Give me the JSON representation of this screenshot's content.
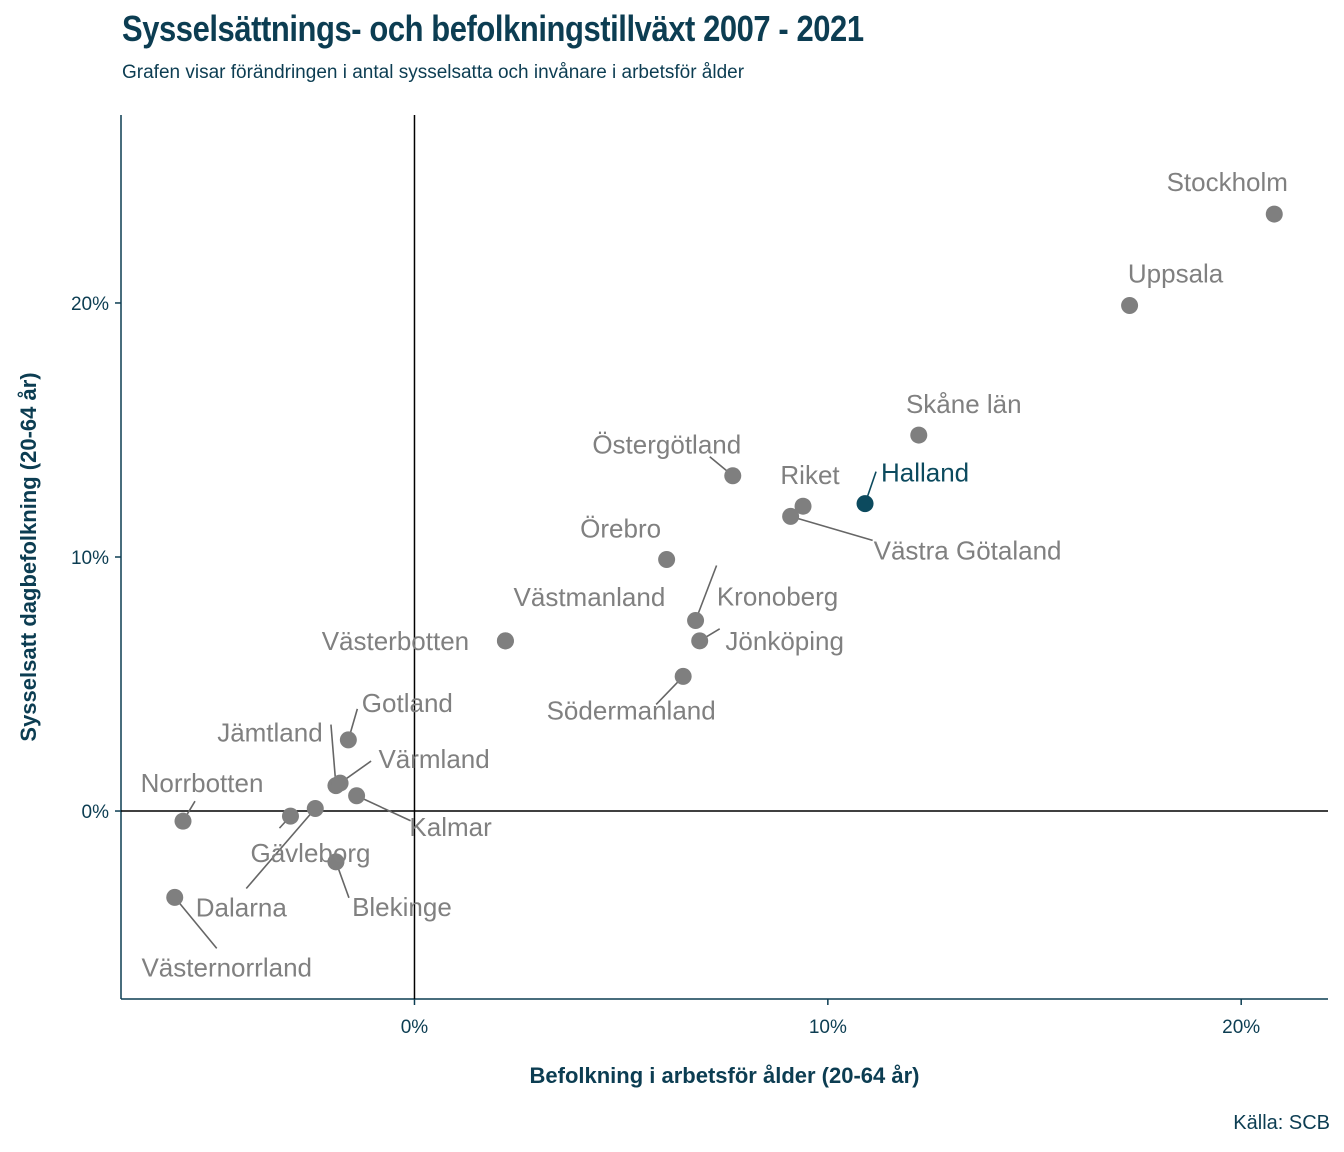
{
  "title": "Sysselsättnings- och befolkningstillväxt 2007 - 2021",
  "subtitle": "Grafen visar förändringen i antal sysselsatta och invånare i arbetsför ålder",
  "caption": "Källa: SCB",
  "colors": {
    "point": "#7f7f7f",
    "highlight": "#0c4a5e",
    "text": "#0c3d52",
    "label": "#808080"
  },
  "chart_data": {
    "type": "scatter",
    "title": "Sysselsättnings- och befolkningstillväxt 2007 - 2021",
    "subtitle": "Grafen visar förändringen i antal sysselsatta och invånare i arbetsför ålder",
    "xlabel": "Befolkning i arbetsför ålder (20-64 år)",
    "ylabel": "Sysselsatt dagbefolkning (20-64 år)",
    "xlim": [
      -7.1,
      22.1
    ],
    "ylim": [
      -7.4,
      27.4
    ],
    "x_ticks": [
      0,
      10,
      20
    ],
    "y_ticks": [
      0,
      10,
      20
    ],
    "x_tick_labels": [
      "0%",
      "10%",
      "20%"
    ],
    "y_tick_labels": [
      "0%",
      "10%",
      "20%"
    ],
    "grid": false,
    "highlight": "Halland",
    "points": [
      {
        "name": "Stockholm",
        "x": 20.8,
        "y": 23.5
      },
      {
        "name": "Uppsala",
        "x": 17.3,
        "y": 19.9
      },
      {
        "name": "Skåne län",
        "x": 12.2,
        "y": 14.8
      },
      {
        "name": "Östergötland",
        "x": 7.7,
        "y": 13.2
      },
      {
        "name": "Riket",
        "x": 9.4,
        "y": 12.0
      },
      {
        "name": "Halland",
        "x": 10.9,
        "y": 12.1
      },
      {
        "name": "Västra Götaland",
        "x": 9.1,
        "y": 11.6
      },
      {
        "name": "Örebro",
        "x": 6.1,
        "y": 9.9
      },
      {
        "name": "Västmanland",
        "x": 2.2,
        "y": 6.7
      },
      {
        "name": "Västerbotten",
        "x": 2.2,
        "y": 6.7
      },
      {
        "name": "Kronoberg",
        "x": 6.8,
        "y": 7.5
      },
      {
        "name": "Jönköping",
        "x": 6.9,
        "y": 6.7
      },
      {
        "name": "Södermanland",
        "x": 6.5,
        "y": 5.3
      },
      {
        "name": "Gotland",
        "x": -1.6,
        "y": 2.8
      },
      {
        "name": "Jämtland",
        "x": -1.9,
        "y": 1.0
      },
      {
        "name": "Värmland",
        "x": -1.8,
        "y": 1.1
      },
      {
        "name": "Kalmar",
        "x": -1.4,
        "y": 0.6
      },
      {
        "name": "Norrbotten",
        "x": -5.6,
        "y": -0.4
      },
      {
        "name": "Gävleborg",
        "x": -3.0,
        "y": -0.2
      },
      {
        "name": "Dalarna",
        "x": -2.4,
        "y": 0.1
      },
      {
        "name": "Blekinge",
        "x": -1.9,
        "y": -2.0
      },
      {
        "name": "Västernorrland",
        "x": -5.8,
        "y": -3.4
      }
    ]
  }
}
